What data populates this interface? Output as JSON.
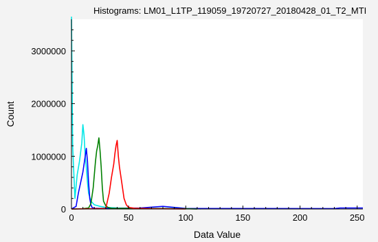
{
  "chart_data": {
    "type": "line",
    "title": "Histograms: LM01_L1TP_119059_19720727_20180428_01_T2_MTI",
    "xlabel": "Data Value",
    "ylabel": "Count",
    "xlim": [
      0,
      255
    ],
    "ylim": [
      0,
      3600000
    ],
    "xticks": [
      0,
      50,
      100,
      150,
      200,
      250
    ],
    "xtick_labels": [
      "0",
      "50",
      "100",
      "150",
      "200",
      "250"
    ],
    "yticks": [
      0,
      1000000,
      2000000,
      3000000
    ],
    "ytick_labels": [
      "0",
      "1000000",
      "2000000",
      "3000000"
    ],
    "grid": false,
    "series": [
      {
        "color": "#00e6e6",
        "x": [
          0,
          1,
          3,
          5,
          7,
          9,
          10,
          11,
          12,
          13,
          14,
          15,
          17,
          20,
          25,
          30,
          40,
          60,
          80,
          100,
          112,
          113
        ],
        "y": [
          3650000,
          1200000,
          200000,
          650000,
          900000,
          1250000,
          1600000,
          1400000,
          1000000,
          800000,
          500000,
          300000,
          150000,
          80000,
          50000,
          30000,
          20000,
          12000,
          10000,
          8000,
          5000,
          0
        ]
      },
      {
        "color": "#0000ff",
        "x": [
          0,
          4,
          6,
          8,
          10,
          12,
          13,
          14,
          15,
          16,
          17,
          18,
          20,
          25,
          60,
          80,
          100,
          230,
          235,
          255
        ],
        "y": [
          0,
          50000,
          300000,
          500000,
          700000,
          1000000,
          1150000,
          900000,
          500000,
          200000,
          80000,
          30000,
          15000,
          10000,
          20000,
          50000,
          10000,
          8000,
          20000,
          20000
        ]
      },
      {
        "color": "#008000",
        "x": [
          0,
          10,
          15,
          17,
          19,
          21,
          22,
          23,
          24,
          25,
          26,
          27,
          28,
          30,
          32,
          35,
          60,
          100,
          110
        ],
        "y": [
          0,
          5000,
          20000,
          100000,
          400000,
          900000,
          1100000,
          1200000,
          1350000,
          1100000,
          800000,
          400000,
          150000,
          60000,
          30000,
          15000,
          10000,
          5000,
          0
        ]
      },
      {
        "color": "#ff0000",
        "x": [
          0,
          20,
          30,
          33,
          35,
          37,
          38,
          39,
          40,
          41,
          42,
          44,
          46,
          48,
          50,
          55,
          70,
          90,
          100
        ],
        "y": [
          0,
          5000,
          10000,
          300000,
          600000,
          850000,
          1050000,
          1200000,
          1300000,
          1000000,
          800000,
          500000,
          200000,
          80000,
          30000,
          15000,
          5000,
          2000,
          0
        ]
      }
    ]
  }
}
